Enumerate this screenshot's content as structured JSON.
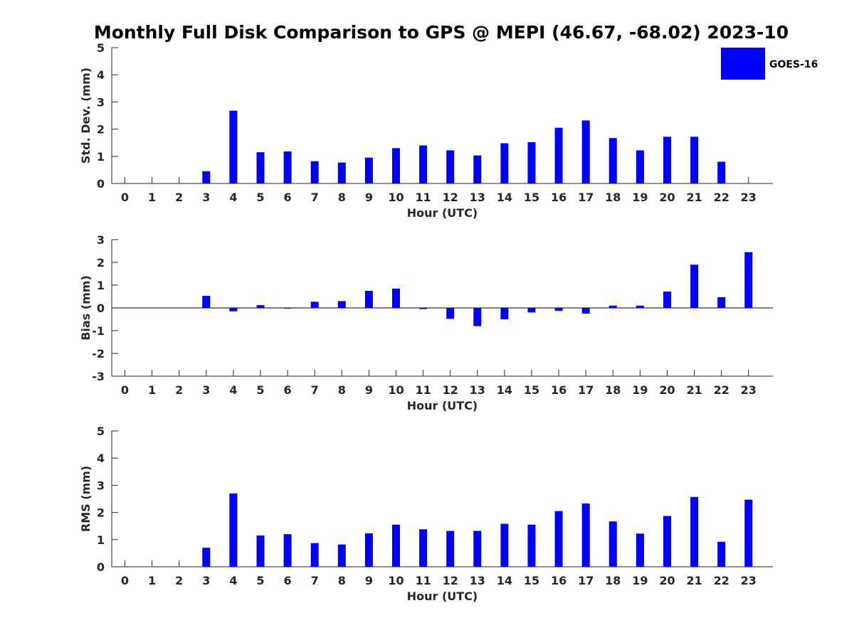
{
  "figure": {
    "title": "Monthly Full Disk Comparison to GPS @ MEPI (46.67, -68.02) 2023-10"
  },
  "legend": {
    "label": "GOES-16",
    "color": "#0000ff",
    "placement": "top-right"
  },
  "chart_data": [
    {
      "type": "bar",
      "xlabel": "Hour (UTC)",
      "ylabel": "Std. Dev. (mm)",
      "ylim": [
        0,
        5
      ],
      "yticks": [
        0,
        1,
        2,
        3,
        4,
        5
      ],
      "categories": [
        "0",
        "1",
        "2",
        "3",
        "4",
        "5",
        "6",
        "7",
        "8",
        "9",
        "10",
        "11",
        "12",
        "13",
        "14",
        "15",
        "16",
        "17",
        "18",
        "19",
        "20",
        "21",
        "22",
        "23"
      ],
      "series": [
        {
          "name": "GOES-16",
          "color": "#0000ff",
          "values": [
            null,
            null,
            null,
            0.45,
            2.68,
            1.15,
            1.18,
            0.82,
            0.77,
            0.95,
            1.3,
            1.4,
            1.22,
            1.03,
            1.48,
            1.52,
            2.05,
            2.32,
            1.67,
            1.22,
            1.72,
            1.72,
            0.8,
            null
          ]
        }
      ]
    },
    {
      "type": "bar",
      "xlabel": "Hour (UTC)",
      "ylabel": "Bias (mm)",
      "ylim": [
        -3,
        3
      ],
      "yticks": [
        -3,
        -2,
        -1,
        0,
        1,
        2,
        3
      ],
      "zero_line": true,
      "categories": [
        "0",
        "1",
        "2",
        "3",
        "4",
        "5",
        "6",
        "7",
        "8",
        "9",
        "10",
        "11",
        "12",
        "13",
        "14",
        "15",
        "16",
        "17",
        "18",
        "19",
        "20",
        "21",
        "22",
        "23"
      ],
      "series": [
        {
          "name": "GOES-16",
          "color": "#0000ff",
          "values": [
            null,
            null,
            null,
            0.53,
            -0.15,
            0.12,
            -0.02,
            0.27,
            0.3,
            0.75,
            0.85,
            -0.05,
            -0.48,
            -0.8,
            -0.5,
            -0.2,
            -0.13,
            -0.25,
            0.1,
            0.1,
            0.72,
            1.9,
            0.47,
            2.45
          ]
        }
      ]
    },
    {
      "type": "bar",
      "xlabel": "Hour (UTC)",
      "ylabel": "RMS (mm)",
      "ylim": [
        0,
        5
      ],
      "yticks": [
        0,
        1,
        2,
        3,
        4,
        5
      ],
      "categories": [
        "0",
        "1",
        "2",
        "3",
        "4",
        "5",
        "6",
        "7",
        "8",
        "9",
        "10",
        "11",
        "12",
        "13",
        "14",
        "15",
        "16",
        "17",
        "18",
        "19",
        "20",
        "21",
        "22",
        "23"
      ],
      "series": [
        {
          "name": "GOES-16",
          "color": "#0000ff",
          "values": [
            null,
            null,
            null,
            0.7,
            2.7,
            1.15,
            1.2,
            0.87,
            0.82,
            1.23,
            1.55,
            1.38,
            1.32,
            1.32,
            1.58,
            1.55,
            2.05,
            2.33,
            1.67,
            1.22,
            1.87,
            2.57,
            0.92,
            2.47
          ]
        }
      ]
    }
  ]
}
